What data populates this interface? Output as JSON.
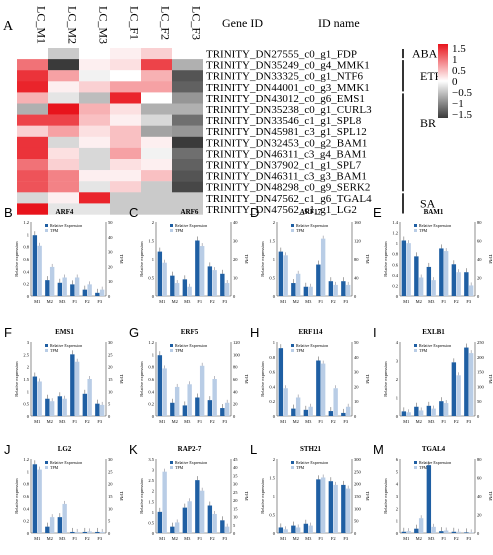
{
  "figure_label": "A",
  "heatmap": {
    "columns": [
      "LC_M1",
      "LC_M2",
      "LC_M3",
      "LC_F1",
      "LC_F2",
      "LC_F3"
    ],
    "header_gene": "Gene ID",
    "header_name": "ID name",
    "rows": [
      {
        "gene": "TRINITY_DN27555_c0_g1_FDP"
      },
      {
        "gene": "TRINITY_DN35249_c0_g4_MMK1"
      },
      {
        "gene": "TRINITY_DN33325_c0_g1_NTF6"
      },
      {
        "gene": "TRINITY_DN44001_c0_g3_MMK1"
      },
      {
        "gene": "TRINITY_DN43012_c0_g6_EMS1"
      },
      {
        "gene": "TRINITY_DN35238_c0_g1_CURL3"
      },
      {
        "gene": "TRINITY_DN33546_c1_g1_SPL8"
      },
      {
        "gene": "TRINITY_DN45981_c3_g1_SPL12"
      },
      {
        "gene": "TRINITY_DN32453_c0_g2_BAM1"
      },
      {
        "gene": "TRINITY_DN46311_c3_g4_BAM1"
      },
      {
        "gene": "TRINITY_DN37902_c1_g1_SPL7"
      },
      {
        "gene": "TRINITY_DN46311_c3_g3_BAM1"
      },
      {
        "gene": "TRINITY_DN48298_c0_g9_SERK2"
      },
      {
        "gene": "TRINITY_DN47562_c1_g6_TGAL4"
      },
      {
        "gene": "TRINITY_DN47562_c1_g1_LG2"
      }
    ],
    "values": [
      [
        0.0,
        -0.4,
        0.0,
        0.1,
        0.3,
        0.0
      ],
      [
        0.9,
        -1.5,
        0.1,
        0.2,
        1.2,
        -0.6
      ],
      [
        1.3,
        0.6,
        -0.1,
        0.0,
        0.5,
        -1.3
      ],
      [
        1.4,
        0.1,
        0.3,
        0.6,
        0.6,
        -1.2
      ],
      [
        0.5,
        -0.2,
        -0.5,
        1.4,
        0.0,
        -0.8
      ],
      [
        -0.6,
        1.5,
        0.5,
        0.2,
        -0.6,
        -0.6
      ],
      [
        1.2,
        1.2,
        0.4,
        0.1,
        -0.3,
        -1.1
      ],
      [
        0.3,
        0.6,
        0.2,
        0.4,
        -0.7,
        -0.8
      ],
      [
        1.3,
        -0.3,
        0.1,
        0.4,
        0.1,
        -1.5
      ],
      [
        1.3,
        0.2,
        -0.3,
        0.6,
        -0.1,
        -1.1
      ],
      [
        0.9,
        0.3,
        -0.3,
        0.2,
        0.1,
        -1.2
      ],
      [
        1.1,
        0.8,
        0.1,
        0.1,
        0.4,
        -1.3
      ],
      [
        1.1,
        0.8,
        -0.2,
        0.3,
        -0.4,
        -1.4
      ],
      [
        -0.3,
        0.1,
        1.4,
        -0.4,
        -0.4,
        -0.4
      ],
      [
        1.5,
        -0.2,
        -0.2,
        -0.4,
        -0.4,
        -0.4
      ]
    ],
    "groups": [
      {
        "label": "ABA",
        "from": 0,
        "to": 0
      },
      {
        "label": "ETH",
        "from": 1,
        "to": 3
      },
      {
        "label": "BR",
        "from": 4,
        "to": 12
      },
      {
        "label": "SA",
        "from": 13,
        "to": 14
      }
    ],
    "scale_labels": [
      "1.5",
      "1",
      "0.5",
      "0",
      "−0.5",
      "−1",
      "−1.5"
    ],
    "colors": {
      "high": "#e8141c",
      "mid": "#ffffff",
      "low": "#3a3a3a"
    }
  },
  "chart_data": {
    "type": "bar",
    "categories": [
      "M1",
      "M2",
      "M3",
      "F1",
      "F2",
      "F3"
    ],
    "left_axis_label": "Relative expression",
    "right_axis_label": "TPM",
    "legend": {
      "bars": "Relative Expression",
      "tpm": "TPM"
    },
    "colors": {
      "relative": "#1f5fa3",
      "tpm": "#b9cde6"
    },
    "panels": [
      {
        "letter": "B",
        "title": "ARF4",
        "rel": [
          1.15,
          0.3,
          0.25,
          0.22,
          0.12,
          0.06
        ],
        "tpm": [
          0.95,
          0.55,
          0.35,
          0.35,
          0.22,
          0.12
        ],
        "ylim": [
          0,
          1.4
        ],
        "yticks": [
          "1.2",
          "1",
          "0.8",
          "0.6",
          "0.4",
          "0.2",
          "0"
        ],
        "rticks": [
          "50",
          "40",
          "30",
          "20",
          "10",
          "0"
        ]
      },
      {
        "letter": "C",
        "title": "ARF6",
        "rel": [
          1.2,
          0.55,
          0.45,
          1.5,
          0.8,
          0.6
        ],
        "tpm": [
          0.9,
          0.35,
          0.25,
          1.35,
          0.7,
          0.35
        ],
        "ylim": [
          0,
          2.0
        ],
        "yticks": [
          "2",
          "1.5",
          "1",
          "0.5",
          "0"
        ],
        "rticks": [
          "40",
          "30",
          "20",
          "10",
          "0"
        ]
      },
      {
        "letter": "D",
        "title": "ARF17",
        "rel": [
          1.2,
          0.35,
          0.25,
          0.85,
          0.4,
          0.4
        ],
        "tpm": [
          1.1,
          0.6,
          0.25,
          1.55,
          0.3,
          0.3
        ],
        "ylim": [
          0,
          2.0
        ],
        "yticks": [
          "2",
          "1.5",
          "1",
          "0.5",
          "0"
        ],
        "rticks": [
          "160",
          "120",
          "80",
          "40",
          "0"
        ]
      },
      {
        "letter": "E",
        "title": "BAM1",
        "rel": [
          1.05,
          0.75,
          0.55,
          0.9,
          0.6,
          0.45
        ],
        "tpm": [
          1.0,
          0.35,
          0.3,
          0.85,
          0.45,
          0.2
        ],
        "ylim": [
          0,
          1.4
        ],
        "yticks": [
          "1.4",
          "1.2",
          "1",
          "0.8",
          "0.6",
          "0.4",
          "0.2",
          "0"
        ],
        "rticks": [
          "80",
          "60",
          "40",
          "20",
          "0"
        ]
      },
      {
        "letter": "F",
        "title": "EMS1",
        "rel": [
          1.6,
          0.7,
          0.8,
          2.5,
          0.9,
          0.5
        ],
        "tpm": [
          1.4,
          0.6,
          0.7,
          2.2,
          1.5,
          0.45
        ],
        "ylim": [
          0,
          3.0
        ],
        "yticks": [
          "3",
          "2.5",
          "2",
          "1.5",
          "1",
          "0.5",
          "0"
        ],
        "rticks": [
          "30",
          "25",
          "20",
          "15",
          "10",
          "5",
          "0"
        ]
      },
      {
        "letter": "G",
        "title": "ERF5",
        "rel": [
          1.15,
          0.25,
          0.2,
          0.35,
          0.3,
          0.15
        ],
        "tpm": [
          0.9,
          0.55,
          0.6,
          0.95,
          0.7,
          0.25
        ],
        "ylim": [
          0,
          1.4
        ],
        "yticks": [
          "1.2",
          "1",
          "0.8",
          "0.6",
          "0.4",
          "0.2",
          "0"
        ],
        "rticks": [
          "120",
          "100",
          "80",
          "60",
          "40",
          "20",
          "0"
        ]
      },
      {
        "letter": "H",
        "title": "ERF114",
        "rel": [
          1.1,
          0.12,
          0.1,
          0.9,
          0.08,
          0.05
        ],
        "tpm": [
          0.45,
          0.3,
          0.15,
          0.85,
          0.45,
          0.15
        ],
        "ylim": [
          0,
          1.2
        ],
        "yticks": [
          "1",
          "0.8",
          "0.6",
          "0.4",
          "0.2",
          "0"
        ],
        "rticks": [
          "50",
          "40",
          "30",
          "20",
          "10",
          "0"
        ]
      },
      {
        "letter": "I",
        "title": "EXLB1",
        "rel": [
          0.25,
          0.5,
          0.55,
          0.8,
          2.9,
          3.7
        ],
        "tpm": [
          0.2,
          0.3,
          0.4,
          0.7,
          2.2,
          3.4
        ],
        "ylim": [
          0,
          4.0
        ],
        "yticks": [
          "4",
          "3",
          "2",
          "1",
          "0"
        ],
        "rticks": [
          "250",
          "200",
          "150",
          "100",
          "50",
          "0"
        ]
      },
      {
        "letter": "J",
        "title": "LG2",
        "rel": [
          1.3,
          0.12,
          0.3,
          0.02,
          0.02,
          0.02
        ],
        "tpm": [
          1.2,
          0.3,
          0.55,
          0.02,
          0.03,
          0.02
        ],
        "ylim": [
          0,
          1.4
        ],
        "yticks": [
          "1.2",
          "1",
          "0.8",
          "0.6",
          "0.4",
          "0.2",
          "0"
        ],
        "rticks": [
          "30",
          "25",
          "20",
          "15",
          "10",
          "5",
          "0"
        ]
      },
      {
        "letter": "K",
        "title": "RAP2-7",
        "rel": [
          1.0,
          0.3,
          1.2,
          2.5,
          1.3,
          0.6
        ],
        "tpm": [
          2.9,
          0.5,
          1.5,
          2.0,
          0.9,
          0.3
        ],
        "ylim": [
          0,
          3.5
        ],
        "yticks": [
          "3.5",
          "3",
          "2.5",
          "2",
          "1.5",
          "1",
          "0.5",
          "0"
        ],
        "rticks": [
          "45",
          "40",
          "35",
          "30",
          "25",
          "20",
          "15",
          "10",
          "5",
          "0"
        ]
      },
      {
        "letter": "L",
        "title": "STH21",
        "rel": [
          0.15,
          0.2,
          0.25,
          1.45,
          1.4,
          1.3
        ],
        "tpm": [
          0.1,
          0.15,
          0.2,
          1.5,
          1.3,
          1.2
        ],
        "ylim": [
          0,
          2.0
        ],
        "yticks": [
          "2",
          "1.5",
          "1",
          "0.5",
          "0"
        ],
        "rticks": [
          "300",
          "250",
          "200",
          "150",
          "100",
          "50",
          "0"
        ]
      },
      {
        "letter": "M",
        "title": "TGAL4",
        "rel": [
          0.1,
          0.35,
          5.5,
          0.15,
          0.1,
          0.05
        ],
        "tpm": [
          0.15,
          1.2,
          0.5,
          0.2,
          0.1,
          0.05
        ],
        "ylim": [
          0,
          6.0
        ],
        "yticks": [
          "6",
          "5",
          "4",
          "3",
          "2",
          "1",
          "0"
        ],
        "rticks": [
          "80",
          "60",
          "40",
          "20",
          "0"
        ]
      }
    ]
  }
}
